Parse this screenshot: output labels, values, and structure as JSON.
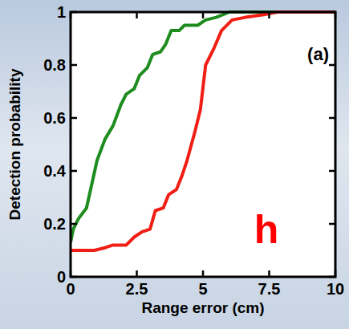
{
  "chart_data": {
    "type": "line",
    "x_label": "Range error (cm)",
    "y_label": "Detection probability",
    "annotations": [
      {
        "text": "(a)",
        "color": "#000000"
      },
      {
        "text": "h",
        "color": "#ff0000"
      }
    ],
    "series": [
      {
        "color": "#1e8c1e",
        "x": [
          0,
          0.1,
          0.3,
          0.6,
          0.8,
          1,
          1.3,
          1.6,
          1.9,
          2.1,
          2.4,
          2.6,
          2.9,
          3.1,
          3.4,
          3.6,
          3.8,
          4.1,
          4.3,
          4.8,
          5.1,
          5.5,
          6,
          10
        ],
        "values": [
          0.13,
          0.18,
          0.22,
          0.26,
          0.35,
          0.44,
          0.52,
          0.57,
          0.65,
          0.69,
          0.71,
          0.76,
          0.79,
          0.84,
          0.85,
          0.88,
          0.93,
          0.93,
          0.95,
          0.95,
          0.97,
          0.98,
          1,
          1
        ]
      },
      {
        "color": "#f01e14",
        "x": [
          0,
          0.9,
          1.3,
          1.6,
          2.1,
          2.4,
          2.7,
          3,
          3.2,
          3.5,
          3.7,
          4,
          4.2,
          4.4,
          4.7,
          4.9,
          5.1,
          5.4,
          5.7,
          6.1,
          6.6,
          7.3,
          7.8,
          10
        ],
        "values": [
          0.1,
          0.1,
          0.11,
          0.12,
          0.12,
          0.15,
          0.17,
          0.18,
          0.25,
          0.26,
          0.31,
          0.33,
          0.38,
          0.44,
          0.55,
          0.63,
          0.8,
          0.86,
          0.93,
          0.97,
          0.98,
          0.99,
          1,
          1
        ]
      }
    ],
    "xlim": [
      0,
      10
    ],
    "xticks": [
      0,
      2.5,
      5,
      7.5,
      10
    ],
    "ylim": [
      0,
      1
    ],
    "yticks": [
      0,
      0.2,
      0.4,
      0.6,
      0.8,
      1
    ],
    "grid": false
  }
}
